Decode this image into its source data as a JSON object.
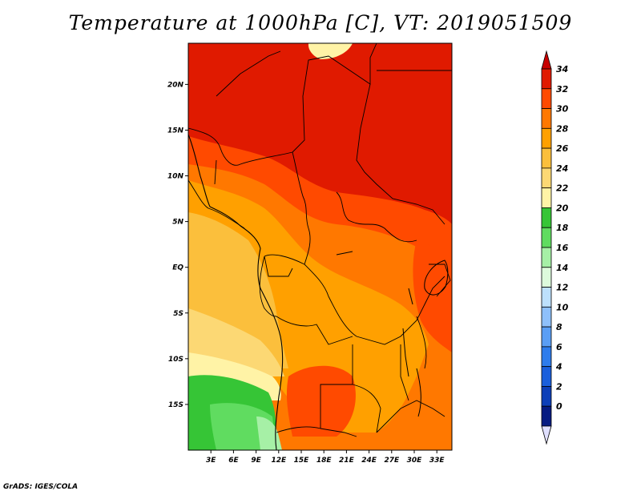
{
  "title": "Temperature at 1000hPa [C], VT: 2019051509",
  "footer": "GrADS: IGES/COLA",
  "map": {
    "lon_range": [
      0,
      35
    ],
    "lat_range": [
      -20,
      24.5
    ],
    "lon_ticks": [
      {
        "value": 3,
        "label": "3E"
      },
      {
        "value": 6,
        "label": "6E"
      },
      {
        "value": 9,
        "label": "9E"
      },
      {
        "value": 12,
        "label": "12E"
      },
      {
        "value": 15,
        "label": "15E"
      },
      {
        "value": 18,
        "label": "18E"
      },
      {
        "value": 21,
        "label": "21E"
      },
      {
        "value": 24,
        "label": "24E"
      },
      {
        "value": 27,
        "label": "27E"
      },
      {
        "value": 30,
        "label": "30E"
      },
      {
        "value": 33,
        "label": "33E"
      }
    ],
    "lat_ticks": [
      {
        "value": 20,
        "label": "20N"
      },
      {
        "value": 15,
        "label": "15N"
      },
      {
        "value": 10,
        "label": "10N"
      },
      {
        "value": 5,
        "label": "5N"
      },
      {
        "value": 0,
        "label": "EQ"
      },
      {
        "value": -5,
        "label": "5S"
      },
      {
        "value": -10,
        "label": "10S"
      },
      {
        "value": -15,
        "label": "15S"
      }
    ]
  },
  "colorbar": {
    "levels": [
      {
        "label": "34",
        "color": "#e01a00"
      },
      {
        "label": "32",
        "color": "#ff4a00"
      },
      {
        "label": "30",
        "color": "#ff7800"
      },
      {
        "label": "28",
        "color": "#ffa000"
      },
      {
        "label": "26",
        "color": "#fbbf3c"
      },
      {
        "label": "24",
        "color": "#fcd874"
      },
      {
        "label": "22",
        "color": "#fff3a6"
      },
      {
        "label": "20",
        "color": "#36c536"
      },
      {
        "label": "18",
        "color": "#60dc60"
      },
      {
        "label": "16",
        "color": "#a6f0a6"
      },
      {
        "label": "14",
        "color": "#ddfadc"
      },
      {
        "label": "12",
        "color": "#bde0fc"
      },
      {
        "label": "10",
        "color": "#8ec0fb"
      },
      {
        "label": "8",
        "color": "#5a9ef5"
      },
      {
        "label": "6",
        "color": "#2e7cec"
      },
      {
        "label": "4",
        "color": "#1a5fdc"
      },
      {
        "label": "2",
        "color": "#0d3fb8"
      },
      {
        "label": "0",
        "color": "#061b82"
      }
    ],
    "top_color": "#c80000",
    "bottom_color": "#e0e0ff"
  },
  "fields": [
    {
      "name": "hot-north",
      "color": "#e01a00"
    },
    {
      "name": "orange-band",
      "color": "#ff4a00"
    },
    {
      "name": "orange-mid",
      "color": "#ff7800"
    },
    {
      "name": "amber-coast",
      "color": "#ffa000"
    },
    {
      "name": "light-orange",
      "color": "#fbbf3c"
    },
    {
      "name": "pale-yellow",
      "color": "#fcd874"
    },
    {
      "name": "cream",
      "color": "#fff3a6"
    },
    {
      "name": "green",
      "color": "#36c536"
    },
    {
      "name": "light-green",
      "color": "#60dc60"
    },
    {
      "name": "pale-green",
      "color": "#a6f0a6"
    }
  ]
}
